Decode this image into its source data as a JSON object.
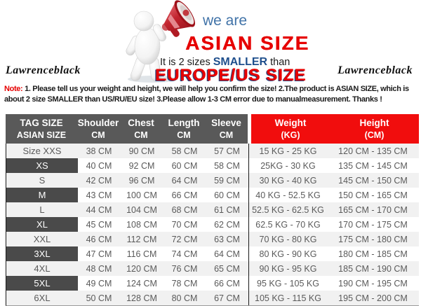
{
  "brand": {
    "left": "Lawrenceblack",
    "right": "Lawrenceblack"
  },
  "banner": {
    "we_are": "we are",
    "asian_size": "ASIAN SIZE",
    "line_prefix": "It is 2 sizes ",
    "smaller": "SMALLER",
    "line_suffix": " than",
    "europe_us": "EUROPE/US SIZE"
  },
  "note": {
    "label": "Note:",
    "text": " 1. Please tell us your weight and height, we will help you confirm the size!  2.The product is ASIAN SIZE, which is about 2 size SMALLER than US/RU/EU size!  3.Please allow 1-3 CM error due to manualmeasurement. Thanks !"
  },
  "table": {
    "headers": [
      {
        "line1": "TAG SIZE",
        "line2": "ASIAN SIZE"
      },
      {
        "line1": "Shoulder",
        "line2": "CM"
      },
      {
        "line1": "Chest",
        "line2": "CM"
      },
      {
        "line1": "Length",
        "line2": "CM"
      },
      {
        "line1": "Sleeve",
        "line2": "CM"
      },
      {
        "line1": "Weight",
        "line2": "(KG)"
      },
      {
        "line1": "Height",
        "line2": "(CM)"
      }
    ],
    "rows": [
      [
        "Size XXS",
        "38 CM",
        "90 CM",
        "58 CM",
        "57 CM",
        "15 KG - 25 KG",
        "120 CM - 135 CM"
      ],
      [
        "XS",
        "40 CM",
        "92 CM",
        "60 CM",
        "58 CM",
        "25KG - 30 KG",
        "135 CM - 145 CM"
      ],
      [
        "S",
        "42 CM",
        "96 CM",
        "64 CM",
        "59 CM",
        "30 KG - 40 KG",
        "145 CM - 150 CM"
      ],
      [
        "M",
        "43 CM",
        "100 CM",
        "66 CM",
        "60 CM",
        "40 KG - 52.5 KG",
        "150 CM - 165 CM"
      ],
      [
        "L",
        "44 CM",
        "104 CM",
        "68 CM",
        "61 CM",
        "52.5 KG - 62.5 KG",
        "165 CM - 170 CM"
      ],
      [
        "XL",
        "45 CM",
        "108 CM",
        "70 CM",
        "62 CM",
        "62.5 KG - 70 KG",
        "170 CM - 175 CM"
      ],
      [
        "XXL",
        "46 CM",
        "112 CM",
        "72 CM",
        "63 CM",
        "70 KG - 80 KG",
        "175 CM - 180 CM"
      ],
      [
        "3XL",
        "47 CM",
        "116 CM",
        "74 CM",
        "64 CM",
        "80 KG - 90 KG",
        "180 CM - 185 CM"
      ],
      [
        "4XL",
        "48 CM",
        "120 CM",
        "76 CM",
        "65 CM",
        "90 KG - 95 KG",
        "185 CM - 190 CM"
      ],
      [
        "5XL",
        "49 CM",
        "124 CM",
        "78 CM",
        "66 CM",
        "95 KG - 105 KG",
        "190 CM - 195 CM"
      ],
      [
        "6XL",
        "50 CM",
        "128 CM",
        "80 CM",
        "67 CM",
        "105 KG - 115 KG",
        "195 CM - 200 CM"
      ]
    ]
  },
  "colors": {
    "header_gray": "#595959",
    "header_red": "#f10d0d",
    "dark_label_cell": "#4a4a4a",
    "accent_red": "#e60000",
    "navy_blue": "#1e4e8c",
    "we_are_blue": "#4173a8",
    "row_stripe": "#f1f1f1"
  }
}
